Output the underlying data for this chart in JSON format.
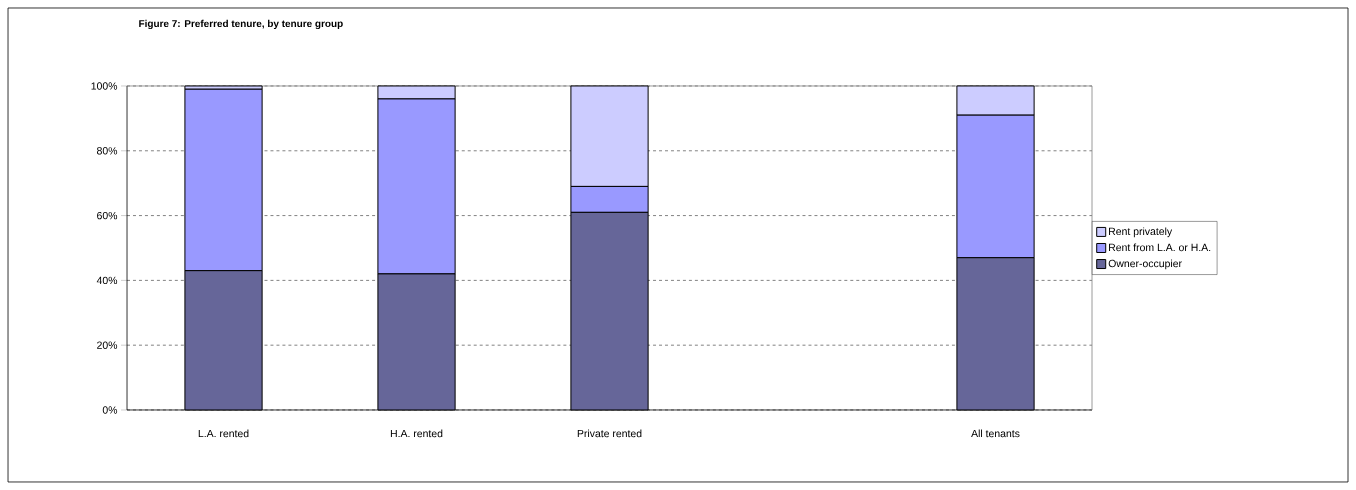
{
  "chart_data": {
    "type": "bar",
    "title": "Figure 7: Preferred tenure, by tenure group",
    "categories": [
      "L.A. rented",
      "H.A. rented",
      "Private rented",
      null,
      "All tenants"
    ],
    "stacked": true,
    "series": [
      {
        "name": "Owner-occupier",
        "color": "#666699",
        "values": [
          43,
          42,
          61,
          null,
          47
        ]
      },
      {
        "name": "Rent from L.A. or H.A.",
        "color": "#9999ff",
        "values": [
          56,
          54,
          8,
          null,
          44
        ]
      },
      {
        "name": "Rent privately",
        "color": "#ccccff",
        "values": [
          1,
          4,
          31,
          null,
          9
        ]
      }
    ],
    "ylim": [
      0,
      100
    ],
    "yticks": [
      {
        "value": 0,
        "label": "0%"
      },
      {
        "value": 20,
        "label": "20%"
      },
      {
        "value": 40,
        "label": "40%"
      },
      {
        "value": 60,
        "label": "60%"
      },
      {
        "value": 80,
        "label": "80%"
      },
      {
        "value": 100,
        "label": "100%"
      }
    ],
    "grid": "y",
    "legend": "right"
  }
}
